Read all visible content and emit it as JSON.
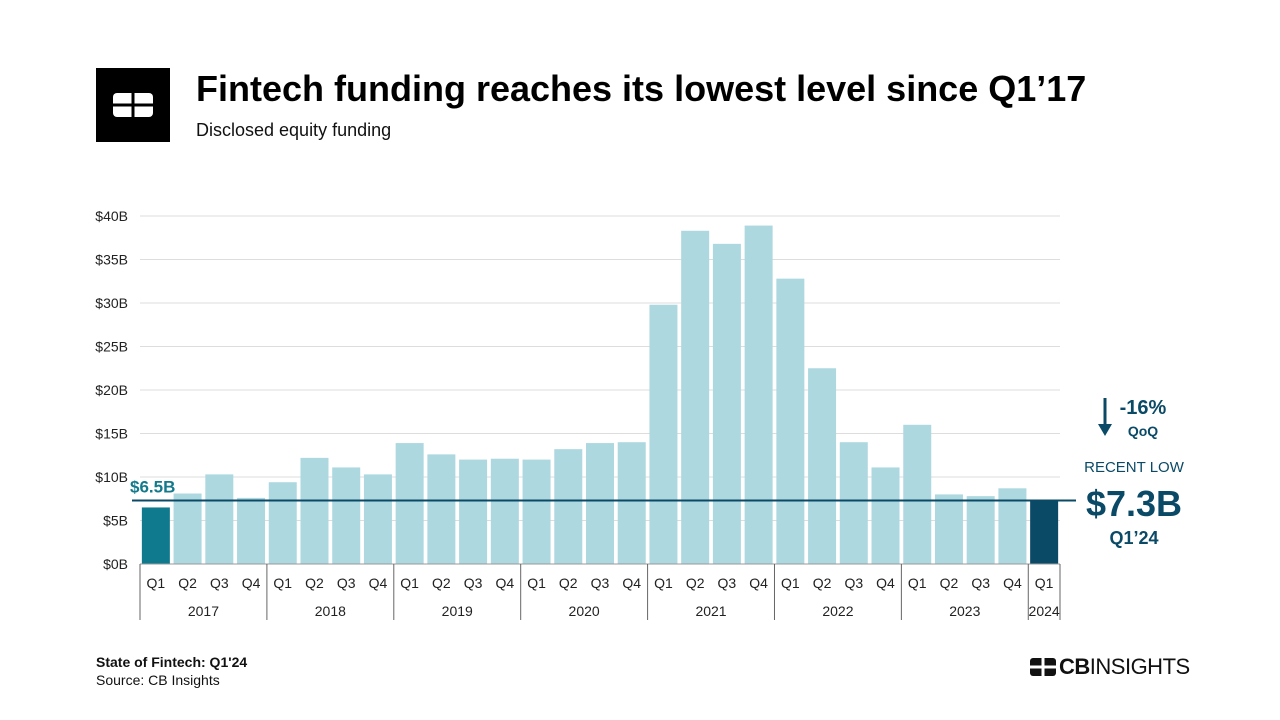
{
  "header": {
    "title": "Fintech funding reaches its lowest level since Q1’17",
    "subtitle": "Disclosed  equity funding"
  },
  "footer": {
    "report": "State of Fintech: Q1'24",
    "source": "Source: CB Insights"
  },
  "brand": {
    "bold": "CB",
    "rest": "INSIGHTS",
    "icon": "cb-insights-logo-icon"
  },
  "colors": {
    "bar": "#add8e0",
    "first_bar": "#0f7a8d",
    "last_bar": "#0a4a66",
    "callout": "#0a4a66",
    "low_label": "#137a8c",
    "grid": "#dddddd",
    "axis_text": "#222222"
  },
  "annotations": {
    "low_line_value": 7.3,
    "low_label": "$6.5B",
    "qoq_change": "-16%",
    "qoq_label": "QoQ",
    "recent_low_label": "RECENT LOW",
    "recent_low_value": "$7.3B",
    "recent_low_period": "Q1’24"
  },
  "chart_data": {
    "type": "bar",
    "title": "Fintech funding reaches its lowest level since Q1’17",
    "subtitle": "Disclosed  equity funding",
    "categories": [
      "Q1",
      "Q2",
      "Q3",
      "Q4",
      "Q1",
      "Q2",
      "Q3",
      "Q4",
      "Q1",
      "Q2",
      "Q3",
      "Q4",
      "Q1",
      "Q2",
      "Q3",
      "Q4",
      "Q1",
      "Q2",
      "Q3",
      "Q4",
      "Q1",
      "Q2",
      "Q3",
      "Q4",
      "Q1",
      "Q2",
      "Q3",
      "Q4",
      "Q1"
    ],
    "year_groups": [
      {
        "year": "2017",
        "count": 4
      },
      {
        "year": "2018",
        "count": 4
      },
      {
        "year": "2019",
        "count": 4
      },
      {
        "year": "2020",
        "count": 4
      },
      {
        "year": "2021",
        "count": 4
      },
      {
        "year": "2022",
        "count": 4
      },
      {
        "year": "2023",
        "count": 4
      },
      {
        "year": "2024",
        "count": 1
      }
    ],
    "values": [
      6.5,
      8.1,
      10.3,
      7.6,
      9.4,
      12.2,
      11.1,
      10.3,
      13.9,
      12.6,
      12.0,
      12.1,
      12.0,
      13.2,
      13.9,
      14.0,
      29.8,
      38.3,
      36.8,
      38.9,
      32.8,
      22.5,
      14.0,
      11.1,
      16.0,
      8.0,
      7.8,
      8.7,
      7.3
    ],
    "ylim": [
      0,
      40
    ],
    "yticks": [
      0,
      5,
      10,
      15,
      20,
      25,
      30,
      35,
      40
    ],
    "ytick_labels": [
      "$0B",
      "$5B",
      "$10B",
      "$15B",
      "$20B",
      "$25B",
      "$30B",
      "$35B",
      "$40B"
    ],
    "xlabel": "",
    "ylabel": "",
    "grid": true
  }
}
